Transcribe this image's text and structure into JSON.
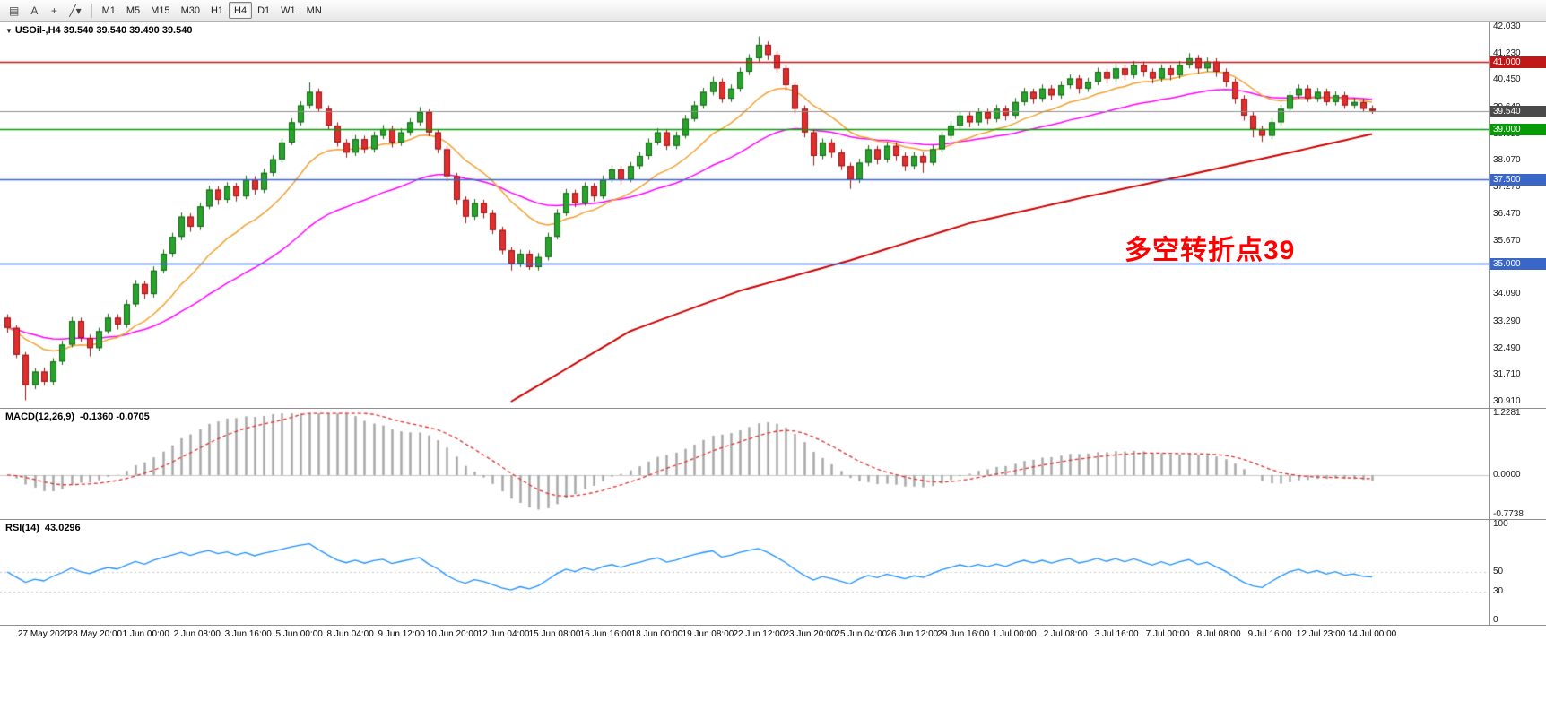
{
  "toolbar": {
    "icons": [
      {
        "name": "chart-type-icon",
        "glyph": "▤"
      },
      {
        "name": "cursor-tool-icon",
        "glyph": "A"
      },
      {
        "name": "crosshair-tool-icon",
        "glyph": "+"
      },
      {
        "name": "draw-tools-icon",
        "glyph": "╱▾"
      }
    ],
    "timeframes": [
      {
        "label": "M1",
        "active": false
      },
      {
        "label": "M5",
        "active": false
      },
      {
        "label": "M15",
        "active": false
      },
      {
        "label": "M30",
        "active": false
      },
      {
        "label": "H1",
        "active": false
      },
      {
        "label": "H4",
        "active": true
      },
      {
        "label": "D1",
        "active": false
      },
      {
        "label": "W1",
        "active": false
      },
      {
        "label": "MN",
        "active": false
      }
    ]
  },
  "chart": {
    "header": {
      "collapse_icon": "▼",
      "symbol": "USOil-,H4",
      "ohlc": "39.540 39.540 39.490 39.540"
    },
    "annotation": {
      "text": "多空转折点39",
      "color": "#ff0000"
    },
    "price_scale": {
      "min": 30.91,
      "max": 42.03,
      "ticks": [
        {
          "label": "42.030",
          "value": 42.03
        },
        {
          "label": "41.230",
          "value": 41.23
        },
        {
          "label": "40.450",
          "value": 40.45
        },
        {
          "label": "39.640",
          "value": 39.64
        },
        {
          "label": "38.850",
          "value": 38.85
        },
        {
          "label": "38.070",
          "value": 38.07
        },
        {
          "label": "37.270",
          "value": 37.27
        },
        {
          "label": "36.470",
          "value": 36.47
        },
        {
          "label": "35.670",
          "value": 35.67
        },
        {
          "label": "34.870",
          "value": 34.87
        },
        {
          "label": "34.090",
          "value": 34.09
        },
        {
          "label": "33.290",
          "value": 33.29
        },
        {
          "label": "32.490",
          "value": 32.49
        },
        {
          "label": "31.710",
          "value": 31.71
        },
        {
          "label": "30.910",
          "value": 30.91
        }
      ]
    },
    "levels": [
      {
        "label": "41.000",
        "value": 41.0,
        "color": "#c01717",
        "badge": "#c01717",
        "width": 1.6
      },
      {
        "label": "39.540",
        "value": 39.54,
        "color": "#909090",
        "badge": "#4a4a4a",
        "width": 1.0
      },
      {
        "label": "39.000",
        "value": 39.0,
        "color": "#089b08",
        "badge": "#089b08",
        "width": 1.6
      },
      {
        "label": "37.500",
        "value": 37.5,
        "color": "#3a66c8",
        "badge": "#3a66c8",
        "width": 1.6
      },
      {
        "label": "35.000",
        "value": 35.0,
        "color": "#3a66c8",
        "badge": "#3a66c8",
        "width": 1.6
      }
    ]
  },
  "colors": {
    "bull": "#28a42c",
    "bull_border": "#156515",
    "bear": "#e12e2e",
    "bear_border": "#9a1414",
    "ma_fast": "#f0a030",
    "ma_mid": "#ff00ff",
    "ma_slow": "#cc0000",
    "macd_hist": "#a8a8a8",
    "macd_signal": "#e03030",
    "macd_zero": "#c8c8c8",
    "rsi": "#1e90ff",
    "rsi_levels": "#c8c8c8"
  },
  "chart_data": {
    "type": "candlestick",
    "symbol": "USOil-",
    "period": "H4",
    "x_labels": [
      "27 May 2020",
      "28 May 20:00",
      "1 Jun 00:00",
      "2 Jun 08:00",
      "3 Jun 16:00",
      "5 Jun 00:00",
      "8 Jun 04:00",
      "9 Jun 12:00",
      "10 Jun 20:00",
      "12 Jun 04:00",
      "15 Jun 08:00",
      "16 Jun 16:00",
      "18 Jun 00:00",
      "19 Jun 08:00",
      "22 Jun 12:00",
      "23 Jun 20:00",
      "25 Jun 04:00",
      "26 Jun 12:00",
      "29 Jun 16:00",
      "1 Jul 00:00",
      "2 Jul 08:00",
      "3 Jul 16:00",
      "7 Jul 00:00",
      "8 Jul 08:00",
      "9 Jul 16:00",
      "12 Jul 23:00",
      "14 Jul 00:00"
    ],
    "candles": [
      [
        33.4,
        33.5,
        32.95,
        33.1
      ],
      [
        33.1,
        33.18,
        32.2,
        32.3
      ],
      [
        32.3,
        32.38,
        30.95,
        31.4
      ],
      [
        31.4,
        31.9,
        31.28,
        31.8
      ],
      [
        31.8,
        31.92,
        31.38,
        31.5
      ],
      [
        31.5,
        32.2,
        31.4,
        32.1
      ],
      [
        32.1,
        32.72,
        32.0,
        32.6
      ],
      [
        32.6,
        33.42,
        32.52,
        33.3
      ],
      [
        33.3,
        33.4,
        32.68,
        32.8
      ],
      [
        32.8,
        32.9,
        32.25,
        32.5
      ],
      [
        32.5,
        33.1,
        32.4,
        33.0
      ],
      [
        33.0,
        33.52,
        32.92,
        33.4
      ],
      [
        33.4,
        33.5,
        33.05,
        33.2
      ],
      [
        33.2,
        33.92,
        33.1,
        33.8
      ],
      [
        33.8,
        34.52,
        33.72,
        34.4
      ],
      [
        34.4,
        34.5,
        33.95,
        34.1
      ],
      [
        34.1,
        34.92,
        34.0,
        34.8
      ],
      [
        34.8,
        35.42,
        34.72,
        35.3
      ],
      [
        35.3,
        35.92,
        35.2,
        35.8
      ],
      [
        35.8,
        36.52,
        35.7,
        36.4
      ],
      [
        36.4,
        36.5,
        35.95,
        36.1
      ],
      [
        36.1,
        36.82,
        36.0,
        36.7
      ],
      [
        36.7,
        37.32,
        36.62,
        37.2
      ],
      [
        37.2,
        37.3,
        36.75,
        36.9
      ],
      [
        36.9,
        37.42,
        36.8,
        37.3
      ],
      [
        37.3,
        37.4,
        36.85,
        37.0
      ],
      [
        37.0,
        37.62,
        36.92,
        37.5
      ],
      [
        37.5,
        37.6,
        37.05,
        37.2
      ],
      [
        37.2,
        37.82,
        37.1,
        37.7
      ],
      [
        37.7,
        38.22,
        37.6,
        38.1
      ],
      [
        38.1,
        38.72,
        38.0,
        38.6
      ],
      [
        38.6,
        39.32,
        38.52,
        39.2
      ],
      [
        39.2,
        39.82,
        39.1,
        39.7
      ],
      [
        39.7,
        40.38,
        39.6,
        40.1
      ],
      [
        40.1,
        40.2,
        39.5,
        39.6
      ],
      [
        39.6,
        39.7,
        38.98,
        39.1
      ],
      [
        39.1,
        39.2,
        38.48,
        38.6
      ],
      [
        38.6,
        38.7,
        38.15,
        38.3
      ],
      [
        38.3,
        38.82,
        38.2,
        38.7
      ],
      [
        38.7,
        38.8,
        38.28,
        38.4
      ],
      [
        38.4,
        38.92,
        38.3,
        38.8
      ],
      [
        38.8,
        39.12,
        38.7,
        39.0
      ],
      [
        39.0,
        39.1,
        38.45,
        38.6
      ],
      [
        38.6,
        39.02,
        38.5,
        38.9
      ],
      [
        38.9,
        39.32,
        38.8,
        39.2
      ],
      [
        39.2,
        39.65,
        39.1,
        39.5
      ],
      [
        39.5,
        39.58,
        38.78,
        38.9
      ],
      [
        38.9,
        39.0,
        38.28,
        38.4
      ],
      [
        38.4,
        38.5,
        37.45,
        37.6
      ],
      [
        37.6,
        37.7,
        36.75,
        36.9
      ],
      [
        36.9,
        37.0,
        36.2,
        36.4
      ],
      [
        36.4,
        36.92,
        36.3,
        36.8
      ],
      [
        36.8,
        36.9,
        36.35,
        36.5
      ],
      [
        36.5,
        36.6,
        35.88,
        36.0
      ],
      [
        36.0,
        36.1,
        35.28,
        35.4
      ],
      [
        35.4,
        35.5,
        34.8,
        35.0
      ],
      [
        35.0,
        35.42,
        34.9,
        35.3
      ],
      [
        35.3,
        35.4,
        34.82,
        34.9
      ],
      [
        34.9,
        35.32,
        34.8,
        35.2
      ],
      [
        35.2,
        35.92,
        35.1,
        35.8
      ],
      [
        35.8,
        36.62,
        35.72,
        36.5
      ],
      [
        36.5,
        37.22,
        36.42,
        37.1
      ],
      [
        37.1,
        37.2,
        36.68,
        36.8
      ],
      [
        36.8,
        37.42,
        36.72,
        37.3
      ],
      [
        37.3,
        37.4,
        36.85,
        37.0
      ],
      [
        37.0,
        37.62,
        36.92,
        37.5
      ],
      [
        37.5,
        37.92,
        37.4,
        37.8
      ],
      [
        37.8,
        37.9,
        37.35,
        37.5
      ],
      [
        37.5,
        38.02,
        37.42,
        37.9
      ],
      [
        37.9,
        38.32,
        37.8,
        38.2
      ],
      [
        38.2,
        38.72,
        38.1,
        38.6
      ],
      [
        38.6,
        39.02,
        38.52,
        38.9
      ],
      [
        38.9,
        39.0,
        38.38,
        38.5
      ],
      [
        38.5,
        38.92,
        38.4,
        38.8
      ],
      [
        38.8,
        39.42,
        38.72,
        39.3
      ],
      [
        39.3,
        39.82,
        39.22,
        39.7
      ],
      [
        39.7,
        40.22,
        39.6,
        40.1
      ],
      [
        40.1,
        40.55,
        40.0,
        40.4
      ],
      [
        40.4,
        40.5,
        39.78,
        39.9
      ],
      [
        39.9,
        40.32,
        39.8,
        40.2
      ],
      [
        40.2,
        40.82,
        40.1,
        40.7
      ],
      [
        40.7,
        41.22,
        40.6,
        41.1
      ],
      [
        41.1,
        41.75,
        41.0,
        41.5
      ],
      [
        41.5,
        41.6,
        41.05,
        41.2
      ],
      [
        41.2,
        41.3,
        40.68,
        40.8
      ],
      [
        40.8,
        40.9,
        40.15,
        40.3
      ],
      [
        40.3,
        40.4,
        39.45,
        39.6
      ],
      [
        39.6,
        39.7,
        38.75,
        38.9
      ],
      [
        38.9,
        39.0,
        37.92,
        38.2
      ],
      [
        38.2,
        38.72,
        38.1,
        38.6
      ],
      [
        38.6,
        38.7,
        38.15,
        38.3
      ],
      [
        38.3,
        38.4,
        37.78,
        37.9
      ],
      [
        37.9,
        38.0,
        37.22,
        37.5
      ],
      [
        37.5,
        38.12,
        37.4,
        38.0
      ],
      [
        38.0,
        38.52,
        37.9,
        38.4
      ],
      [
        38.4,
        38.5,
        37.95,
        38.1
      ],
      [
        38.1,
        38.62,
        38.0,
        38.5
      ],
      [
        38.5,
        38.6,
        38.05,
        38.2
      ],
      [
        38.2,
        38.3,
        37.75,
        37.9
      ],
      [
        37.9,
        38.32,
        37.8,
        38.2
      ],
      [
        38.2,
        38.3,
        37.7,
        38.0
      ],
      [
        38.0,
        38.52,
        37.92,
        38.4
      ],
      [
        38.4,
        38.92,
        38.3,
        38.8
      ],
      [
        38.8,
        39.22,
        38.7,
        39.1
      ],
      [
        39.1,
        39.52,
        39.0,
        39.4
      ],
      [
        39.4,
        39.5,
        39.05,
        39.2
      ],
      [
        39.2,
        39.62,
        39.1,
        39.5
      ],
      [
        39.5,
        39.6,
        39.15,
        39.3
      ],
      [
        39.3,
        39.72,
        39.2,
        39.6
      ],
      [
        39.6,
        39.7,
        39.25,
        39.4
      ],
      [
        39.4,
        39.92,
        39.3,
        39.8
      ],
      [
        39.8,
        40.22,
        39.7,
        40.1
      ],
      [
        40.1,
        40.2,
        39.75,
        39.9
      ],
      [
        39.9,
        40.32,
        39.8,
        40.2
      ],
      [
        40.2,
        40.3,
        39.85,
        40.0
      ],
      [
        40.0,
        40.42,
        39.9,
        40.3
      ],
      [
        40.3,
        40.62,
        40.2,
        40.5
      ],
      [
        40.5,
        40.6,
        40.05,
        40.2
      ],
      [
        40.2,
        40.52,
        40.1,
        40.4
      ],
      [
        40.4,
        40.82,
        40.3,
        40.7
      ],
      [
        40.7,
        40.8,
        40.35,
        40.5
      ],
      [
        40.5,
        40.92,
        40.4,
        40.8
      ],
      [
        40.8,
        40.9,
        40.45,
        40.6
      ],
      [
        40.6,
        41.02,
        40.5,
        40.9
      ],
      [
        40.9,
        41.0,
        40.55,
        40.7
      ],
      [
        40.7,
        40.8,
        40.35,
        40.5
      ],
      [
        40.5,
        40.92,
        40.4,
        40.8
      ],
      [
        40.8,
        40.9,
        40.45,
        40.6
      ],
      [
        40.6,
        41.02,
        40.5,
        40.9
      ],
      [
        40.9,
        41.25,
        40.8,
        41.1
      ],
      [
        41.1,
        41.2,
        40.65,
        40.8
      ],
      [
        40.8,
        41.12,
        40.7,
        41.0
      ],
      [
        41.0,
        41.1,
        40.55,
        40.7
      ],
      [
        40.7,
        40.8,
        40.25,
        40.4
      ],
      [
        40.4,
        40.5,
        39.75,
        39.9
      ],
      [
        39.9,
        40.0,
        39.25,
        39.4
      ],
      [
        39.4,
        39.5,
        38.75,
        39.0
      ],
      [
        39.0,
        39.1,
        38.62,
        38.8
      ],
      [
        38.8,
        39.32,
        38.7,
        39.2
      ],
      [
        39.2,
        39.72,
        39.1,
        39.6
      ],
      [
        39.6,
        40.12,
        39.5,
        40.0
      ],
      [
        40.0,
        40.32,
        39.9,
        40.2
      ],
      [
        40.2,
        40.3,
        39.8,
        39.9
      ],
      [
        39.9,
        40.22,
        39.8,
        40.1
      ],
      [
        40.1,
        40.2,
        39.7,
        39.8
      ],
      [
        39.8,
        40.12,
        39.7,
        40.0
      ],
      [
        40.0,
        40.1,
        39.6,
        39.7
      ],
      [
        39.7,
        39.92,
        39.6,
        39.8
      ],
      [
        39.8,
        39.9,
        39.5,
        39.6
      ],
      [
        39.6,
        39.7,
        39.45,
        39.54
      ]
    ],
    "ma_long_waypoints": [
      [
        55,
        30.91
      ],
      [
        68,
        33.0
      ],
      [
        80,
        34.2
      ],
      [
        92,
        35.1
      ],
      [
        105,
        36.2
      ],
      [
        118,
        37.0
      ],
      [
        130,
        37.7
      ],
      [
        140,
        38.3
      ],
      [
        149,
        38.85
      ]
    ],
    "indicators": {
      "macd": {
        "title": "MACD(12,26,9)",
        "values": "-0.1360 -0.0705",
        "range": [
          -0.7738,
          1.2281
        ],
        "scale": [
          {
            "label": "1.2281",
            "value": 1.2281
          },
          {
            "label": "0.0000",
            "value": 0
          },
          {
            "label": "-0.7738",
            "value": -0.7738
          }
        ]
      },
      "rsi": {
        "title": "RSI(14)",
        "values": "43.0296",
        "levels": [
          50,
          30
        ],
        "scale": [
          {
            "label": "100",
            "value": 100
          },
          {
            "label": "50",
            "value": 50
          },
          {
            "label": "30",
            "value": 30
          },
          {
            "label": "0",
            "value": 0
          }
        ]
      }
    }
  }
}
